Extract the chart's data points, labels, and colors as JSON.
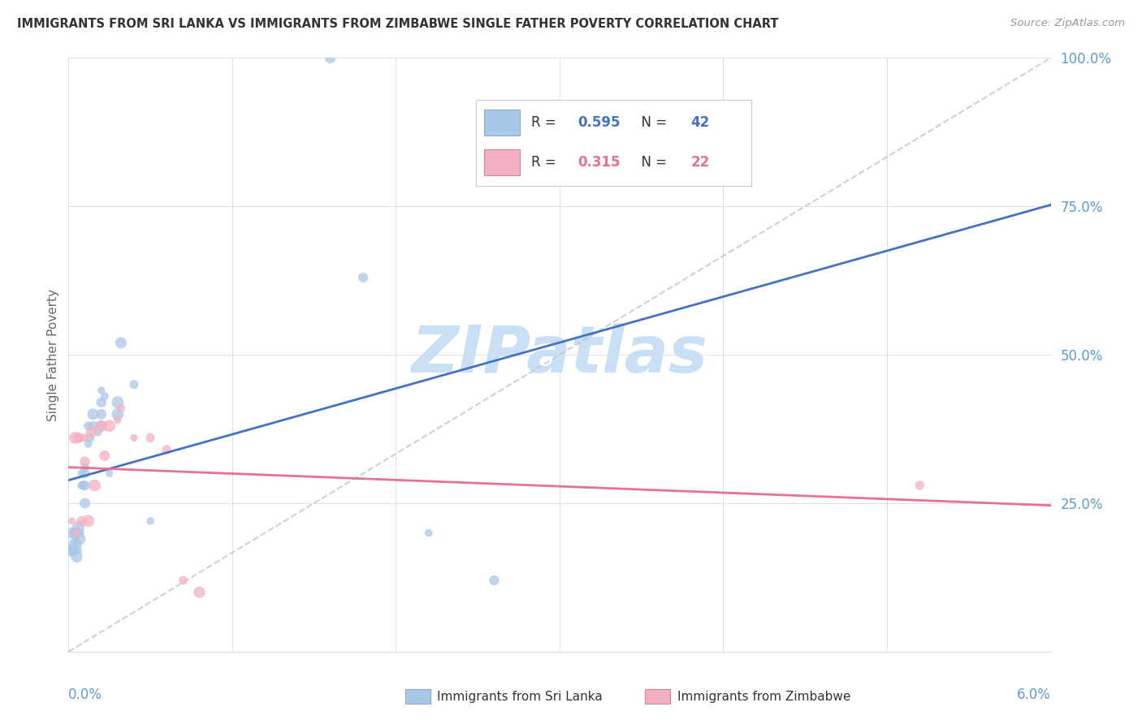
{
  "title": "IMMIGRANTS FROM SRI LANKA VS IMMIGRANTS FROM ZIMBABWE SINGLE FATHER POVERTY CORRELATION CHART",
  "source": "Source: ZipAtlas.com",
  "ylabel": "Single Father Poverty",
  "legend_label1": "Immigrants from Sri Lanka",
  "legend_label2": "Immigrants from Zimbabwe",
  "R1": "0.595",
  "N1": "42",
  "R2": "0.315",
  "N2": "22",
  "color_blue": "#a8c8e8",
  "color_pink": "#f4b0c0",
  "color_blue_line": "#4472c4",
  "color_pink_line": "#e87090",
  "color_diag": "#b8c8d8",
  "xlim": [
    0.0,
    0.06
  ],
  "ylim": [
    0.0,
    1.0
  ],
  "background_color": "#ffffff",
  "watermark_text": "ZIPatlas",
  "watermark_color": "#c8dff5",
  "sri_lanka_x": [
    0.0001,
    0.0002,
    0.0002,
    0.0003,
    0.0003,
    0.0004,
    0.0004,
    0.0005,
    0.0005,
    0.0005,
    0.0006,
    0.0006,
    0.0007,
    0.0007,
    0.0008,
    0.0008,
    0.0009,
    0.001,
    0.001,
    0.001,
    0.001,
    0.0012,
    0.0012,
    0.0013,
    0.0015,
    0.0015,
    0.0018,
    0.002,
    0.002,
    0.002,
    0.002,
    0.0022,
    0.0025,
    0.003,
    0.003,
    0.0032,
    0.004,
    0.005,
    0.016,
    0.018,
    0.022,
    0.026
  ],
  "sri_lanka_y": [
    0.17,
    0.17,
    0.2,
    0.18,
    0.2,
    0.17,
    0.19,
    0.16,
    0.18,
    0.2,
    0.17,
    0.21,
    0.19,
    0.2,
    0.28,
    0.3,
    0.28,
    0.28,
    0.3,
    0.31,
    0.25,
    0.35,
    0.38,
    0.36,
    0.38,
    0.4,
    0.37,
    0.42,
    0.4,
    0.44,
    0.38,
    0.43,
    0.3,
    0.4,
    0.42,
    0.52,
    0.45,
    0.22,
    1.0,
    0.63,
    0.2,
    0.12
  ],
  "zimbabwe_x": [
    0.0002,
    0.0004,
    0.0005,
    0.0006,
    0.0007,
    0.0008,
    0.001,
    0.001,
    0.0012,
    0.0014,
    0.0016,
    0.002,
    0.0022,
    0.0025,
    0.003,
    0.0032,
    0.004,
    0.005,
    0.006,
    0.007,
    0.008,
    0.052
  ],
  "zimbabwe_y": [
    0.22,
    0.36,
    0.2,
    0.36,
    0.36,
    0.22,
    0.32,
    0.36,
    0.22,
    0.37,
    0.28,
    0.38,
    0.33,
    0.38,
    0.39,
    0.41,
    0.36,
    0.36,
    0.34,
    0.12,
    0.1,
    0.28
  ]
}
